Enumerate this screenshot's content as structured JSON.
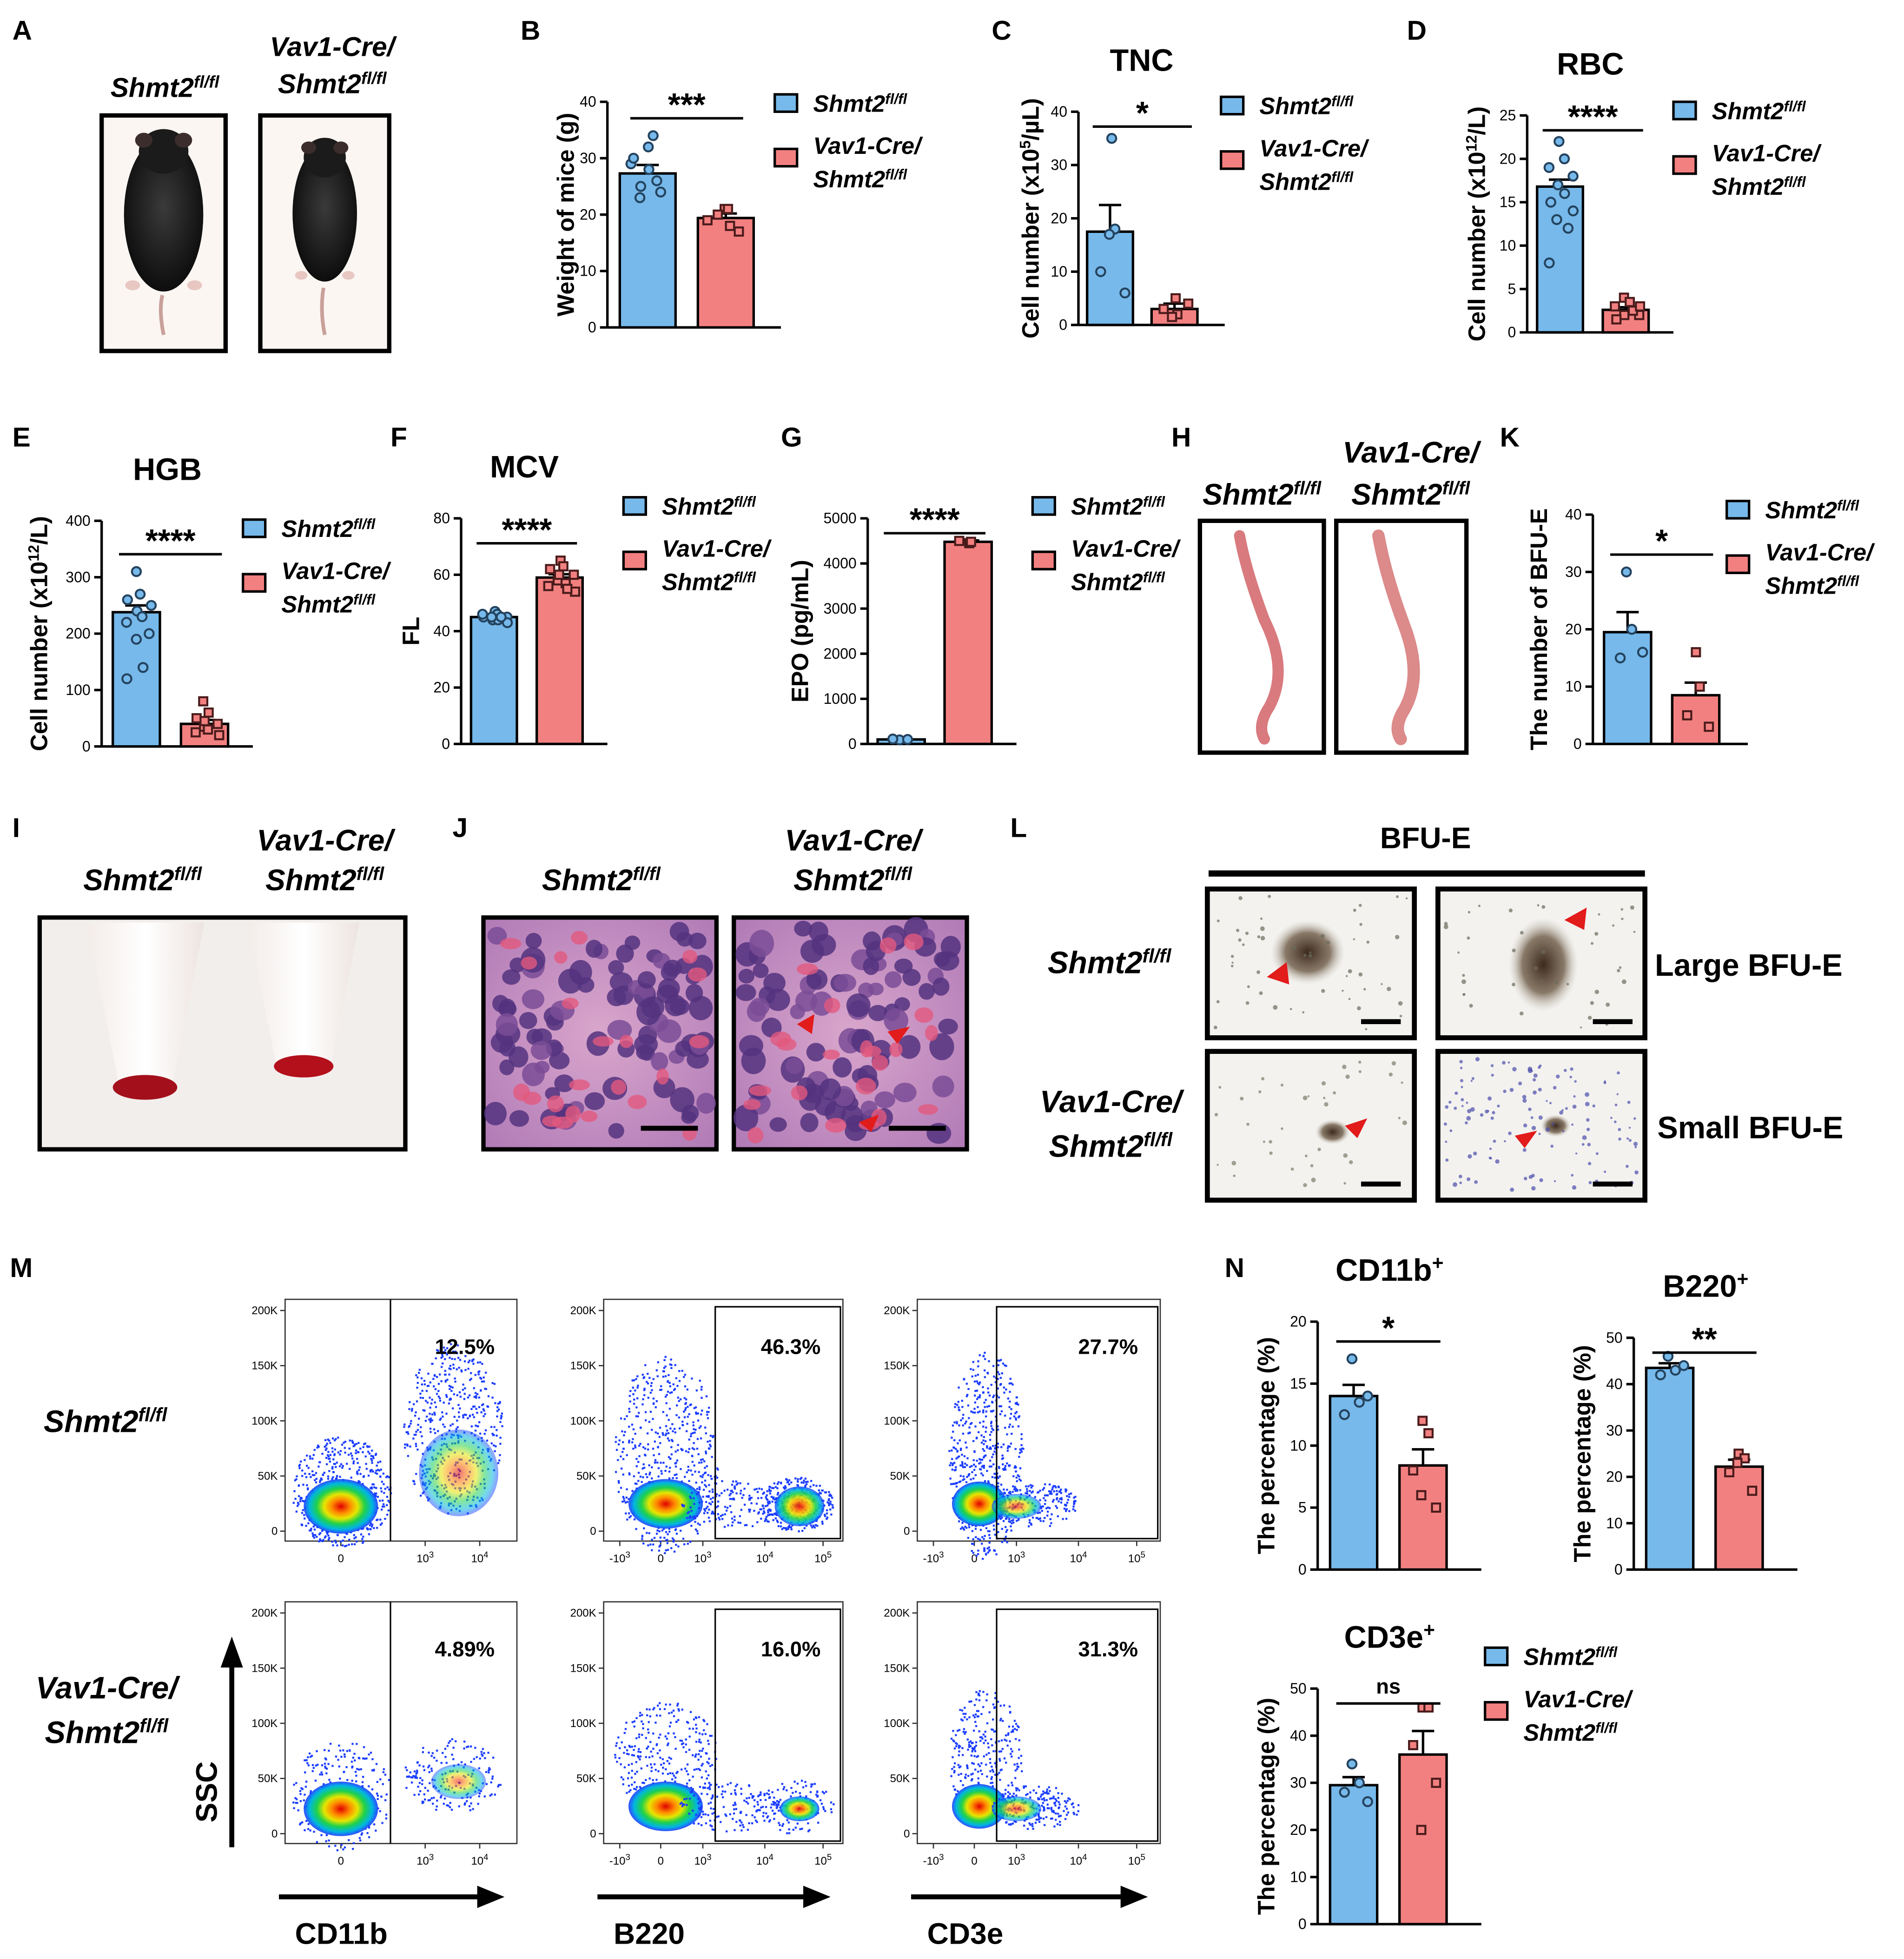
{
  "colors": {
    "control": "#76b9ea",
    "ko": "#f38080",
    "axis": "#000000",
    "arrow": "#e21b1b"
  },
  "genotypes": {
    "ctrl": "Shmt2",
    "sup": "fl/fl",
    "ko_line1": "Vav1-Cre/",
    "ko_line2": "Shmt2"
  },
  "panels": {
    "A": "A",
    "B": "B",
    "C": "C",
    "D": "D",
    "E": "E",
    "F": "F",
    "G": "G",
    "H": "H",
    "I": "I",
    "J": "J",
    "K": "K",
    "L": "L",
    "M": "M",
    "N": "N"
  },
  "chart_data": [
    {
      "id": "B",
      "type": "bar",
      "title": "",
      "ylabel": "Weight of mice (g)",
      "ylim": [
        0,
        40
      ],
      "yticks": [
        "0",
        "10",
        "20",
        "30",
        "40"
      ],
      "sig": "***",
      "series": [
        {
          "name": "Shmt2 fl/fl",
          "mean": 27.3,
          "sem": 1.5,
          "points": [
            32,
            34,
            23,
            24,
            29,
            28,
            25,
            26,
            30
          ]
        },
        {
          "name": "Vav1-Cre/Shmt2 fl/fl",
          "mean": 19.4,
          "sem": 0.8,
          "points": [
            21,
            18,
            20,
            17,
            19,
            21
          ]
        }
      ]
    },
    {
      "id": "C",
      "type": "bar",
      "title": "TNC",
      "ylabel": "Cell number (x10^5/µL)",
      "ylim": [
        0,
        40
      ],
      "yticks": [
        "0",
        "10",
        "20",
        "30",
        "40"
      ],
      "sig": "*",
      "series": [
        {
          "name": "Shmt2 fl/fl",
          "mean": 17.5,
          "sem": 5,
          "points": [
            35,
            18,
            10,
            6,
            17
          ]
        },
        {
          "name": "Vav1-Cre/Shmt2 fl/fl",
          "mean": 3,
          "sem": 1,
          "points": [
            5,
            2,
            3,
            4,
            1.5
          ]
        }
      ]
    },
    {
      "id": "D",
      "type": "bar",
      "title": "RBC",
      "ylabel": "Cell number (x10^12/L)",
      "ylim": [
        0,
        25
      ],
      "yticks": [
        "0",
        "5",
        "10",
        "15",
        "20",
        "25"
      ],
      "sig": "****",
      "series": [
        {
          "name": "Shmt2 fl/fl",
          "mean": 16.8,
          "sem": 0.8,
          "points": [
            22,
            20,
            19,
            18,
            17,
            16,
            15,
            14,
            13,
            12,
            8
          ]
        },
        {
          "name": "Vav1-Cre/Shmt2 fl/fl",
          "mean": 2.6,
          "sem": 0.3,
          "points": [
            4,
            3.5,
            3,
            2,
            2,
            2.5,
            1.5,
            3
          ]
        }
      ]
    },
    {
      "id": "E",
      "type": "bar",
      "title": "HGB",
      "ylabel": "Cell number (x10^12/L)",
      "ylim": [
        0,
        400
      ],
      "yticks": [
        "0",
        "100",
        "200",
        "300",
        "400"
      ],
      "sig": "****",
      "series": [
        {
          "name": "Shmt2 fl/fl",
          "mean": 238,
          "sem": 12,
          "points": [
            310,
            270,
            260,
            250,
            240,
            230,
            220,
            200,
            190,
            140,
            120
          ]
        },
        {
          "name": "Vav1-Cre/Shmt2 fl/fl",
          "mean": 40,
          "sem": 7,
          "points": [
            80,
            60,
            50,
            40,
            35,
            30,
            25,
            20,
            45
          ]
        }
      ]
    },
    {
      "id": "F",
      "type": "bar",
      "title": "MCV",
      "ylabel": "FL",
      "ylim": [
        0,
        80
      ],
      "yticks": [
        "0",
        "20",
        "40",
        "60",
        "80"
      ],
      "sig": "****",
      "series": [
        {
          "name": "Shmt2 fl/fl",
          "mean": 45,
          "sem": 0.5,
          "points": [
            47,
            46,
            45,
            45,
            44,
            44,
            46,
            43,
            45,
            45
          ]
        },
        {
          "name": "Vav1-Cre/Shmt2 fl/fl",
          "mean": 59,
          "sem": 1.2,
          "points": [
            65,
            63,
            62,
            60,
            58,
            57,
            56,
            54,
            60,
            55
          ]
        }
      ]
    },
    {
      "id": "G",
      "type": "bar",
      "title": "",
      "ylabel": "EPO (pg/mL)",
      "ylim": [
        0,
        5000
      ],
      "yticks": [
        "0",
        "1000",
        "2000",
        "3000",
        "4000",
        "5000"
      ],
      "sig": "****",
      "series": [
        {
          "name": "Shmt2 fl/fl",
          "mean": 100,
          "sem": 10,
          "points": [
            90,
            100,
            110
          ]
        },
        {
          "name": "Vav1-Cre/Shmt2 fl/fl",
          "mean": 4480,
          "sem": 30,
          "points": [
            4450,
            4480,
            4500
          ]
        }
      ]
    },
    {
      "id": "K",
      "type": "bar",
      "title": "",
      "ylabel": "The number of BFU-E",
      "ylim": [
        0,
        40
      ],
      "yticks": [
        "0",
        "10",
        "20",
        "30",
        "40"
      ],
      "sig": "*",
      "series": [
        {
          "name": "Shmt2 fl/fl",
          "mean": 19.5,
          "sem": 3.5,
          "points": [
            30,
            20,
            15,
            16
          ]
        },
        {
          "name": "Vav1-Cre/Shmt2 fl/fl",
          "mean": 8.5,
          "sem": 2.2,
          "points": [
            16,
            10,
            5,
            3
          ]
        }
      ]
    },
    {
      "id": "N1",
      "type": "bar",
      "title": "CD11b+",
      "ylabel": "The percentage (%)",
      "ylim": [
        0,
        20
      ],
      "yticks": [
        "0",
        "5",
        "10",
        "15",
        "20"
      ],
      "sig": "*",
      "series": [
        {
          "name": "Shmt2 fl/fl",
          "mean": 14,
          "sem": 0.9,
          "points": [
            17,
            13.5,
            12.5,
            14
          ]
        },
        {
          "name": "Vav1-Cre/Shmt2 fl/fl",
          "mean": 8.4,
          "sem": 1.3,
          "points": [
            12,
            11,
            8,
            5,
            6
          ]
        }
      ]
    },
    {
      "id": "N2",
      "type": "bar",
      "title": "B220+",
      "ylabel": "The percentage (%)",
      "ylim": [
        0,
        50
      ],
      "yticks": [
        "0",
        "10",
        "20",
        "30",
        "40",
        "50"
      ],
      "sig": "**",
      "series": [
        {
          "name": "Shmt2 fl/fl",
          "mean": 43.5,
          "sem": 1,
          "points": [
            46,
            43,
            42,
            44
          ]
        },
        {
          "name": "Vav1-Cre/Shmt2 fl/fl",
          "mean": 22.2,
          "sem": 1.5,
          "points": [
            25,
            24,
            21,
            17,
            23
          ]
        }
      ]
    },
    {
      "id": "N3",
      "type": "bar",
      "title": "CD3e+",
      "ylabel": "The percentage (%)",
      "ylim": [
        0,
        50
      ],
      "yticks": [
        "0",
        "10",
        "20",
        "30",
        "40",
        "50"
      ],
      "sig": "ns",
      "series": [
        {
          "name": "Shmt2 fl/fl",
          "mean": 29.5,
          "sem": 1.7,
          "points": [
            34,
            30,
            28,
            26
          ]
        },
        {
          "name": "Vav1-Cre/Shmt2 fl/fl",
          "mean": 36,
          "sem": 5,
          "points": [
            46,
            46,
            38,
            30,
            20
          ]
        }
      ]
    }
  ],
  "photos": {
    "bfu_title": "BFU-E",
    "large": "Large BFU-E",
    "small": "Small BFU-E"
  },
  "flow": {
    "y_axis": "SSC",
    "y_ticks": [
      "0",
      "50K",
      "100K",
      "150K",
      "200K"
    ],
    "x_ticks_cd11b": [
      "0",
      "10",
      "3",
      "10",
      "4"
    ],
    "x_ticks_log": [
      "-10",
      "3",
      "0",
      "10",
      "3",
      "10",
      "4",
      "10",
      "5"
    ],
    "markers": [
      "CD11b",
      "B220",
      "CD3e"
    ],
    "ctrl": [
      "12.5%",
      "46.3%",
      "27.7%"
    ],
    "ko": [
      "4.89%",
      "16.0%",
      "31.3%"
    ]
  }
}
